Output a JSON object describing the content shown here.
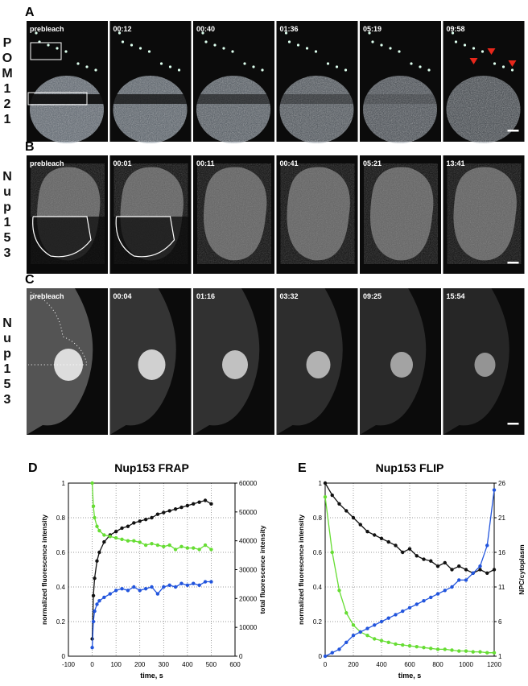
{
  "rows": [
    {
      "letter": "A",
      "label": "POM121",
      "times": [
        "prebleach",
        "00:12",
        "00:40",
        "01:36",
        "05:19",
        "09:58"
      ]
    },
    {
      "letter": "B",
      "label": "Nup153",
      "times": [
        "prebleach",
        "00:01",
        "00:11",
        "00:41",
        "05:21",
        "13:41"
      ]
    },
    {
      "letter": "C",
      "label": "Nup153",
      "times": [
        "prebleach",
        "00:04",
        "01:16",
        "03:32",
        "09:25",
        "15:54"
      ]
    }
  ],
  "chart_data": [
    {
      "type": "line",
      "letter": "D",
      "title": "Nup153 FRAP",
      "x_label": "time, s",
      "y_label": "normalized fluorescence intensity",
      "y2_label": "total fluorescence intensity",
      "xlim": [
        -100,
        600
      ],
      "xticks": [
        -100,
        0,
        100,
        200,
        300,
        400,
        500,
        600
      ],
      "ylim": [
        0,
        1
      ],
      "yticks": [
        0,
        0.2,
        0.4,
        0.6,
        0.8,
        1
      ],
      "y2lim": [
        0,
        60000
      ],
      "y2ticks": [
        0,
        10000,
        20000,
        30000,
        40000,
        50000,
        60000
      ],
      "grid": true,
      "x": [
        0,
        5,
        10,
        20,
        30,
        50,
        75,
        100,
        125,
        150,
        175,
        200,
        225,
        250,
        275,
        300,
        325,
        350,
        375,
        400,
        425,
        450,
        475,
        500
      ],
      "series": [
        {
          "color": "#111111",
          "values": [
            0.1,
            0.35,
            0.45,
            0.55,
            0.6,
            0.66,
            0.7,
            0.72,
            0.74,
            0.75,
            0.77,
            0.78,
            0.79,
            0.8,
            0.82,
            0.83,
            0.84,
            0.85,
            0.86,
            0.87,
            0.88,
            0.89,
            0.9,
            0.88
          ]
        },
        {
          "color": "#66dd33",
          "axis": "y2",
          "values": [
            60000,
            52000,
            48000,
            45000,
            43500,
            42000,
            41500,
            41000,
            40500,
            40000,
            40000,
            39500,
            38500,
            39000,
            38500,
            38000,
            38500,
            37000,
            38000,
            37500,
            37500,
            37000,
            38500,
            37000
          ]
        },
        {
          "color": "#2255dd",
          "values": [
            0.05,
            0.2,
            0.26,
            0.3,
            0.32,
            0.34,
            0.36,
            0.38,
            0.39,
            0.38,
            0.4,
            0.38,
            0.39,
            0.4,
            0.36,
            0.4,
            0.41,
            0.4,
            0.42,
            0.41,
            0.42,
            0.41,
            0.43,
            0.43
          ]
        }
      ]
    },
    {
      "type": "line",
      "letter": "E",
      "title": "Nup153 FLIP",
      "x_label": "time, s",
      "y_label": "normalized fluorescence intensity",
      "y2_label": "NPC/cytoplasm",
      "xlim": [
        0,
        1200
      ],
      "xticks": [
        0,
        200,
        400,
        600,
        800,
        1000,
        1200
      ],
      "ylim": [
        0,
        1
      ],
      "yticks": [
        0,
        0.2,
        0.4,
        0.6,
        0.8,
        1
      ],
      "y2lim": [
        1,
        26
      ],
      "y2ticks": [
        1,
        6,
        11,
        16,
        21,
        26
      ],
      "grid": true,
      "x": [
        0,
        50,
        100,
        150,
        200,
        250,
        300,
        350,
        400,
        450,
        500,
        550,
        600,
        650,
        700,
        750,
        800,
        850,
        900,
        950,
        1000,
        1050,
        1100,
        1150,
        1200
      ],
      "series": [
        {
          "color": "#111111",
          "values": [
            1,
            0.93,
            0.88,
            0.84,
            0.8,
            0.76,
            0.72,
            0.7,
            0.68,
            0.66,
            0.64,
            0.6,
            0.62,
            0.58,
            0.56,
            0.55,
            0.52,
            0.54,
            0.5,
            0.52,
            0.5,
            0.48,
            0.5,
            0.48,
            0.5
          ]
        },
        {
          "color": "#66dd33",
          "values": [
            0.92,
            0.6,
            0.38,
            0.25,
            0.18,
            0.14,
            0.12,
            0.1,
            0.09,
            0.08,
            0.07,
            0.065,
            0.06,
            0.055,
            0.05,
            0.045,
            0.04,
            0.04,
            0.035,
            0.03,
            0.03,
            0.025,
            0.025,
            0.02,
            0.02
          ]
        },
        {
          "color": "#2255dd",
          "axis": "y2",
          "values": [
            1,
            1.5,
            2,
            3,
            4,
            4.5,
            5,
            5.5,
            6,
            6.5,
            7,
            7.5,
            8,
            8.5,
            9,
            9.5,
            10,
            10.5,
            11,
            12,
            12,
            13,
            14,
            17,
            25
          ]
        }
      ]
    }
  ]
}
